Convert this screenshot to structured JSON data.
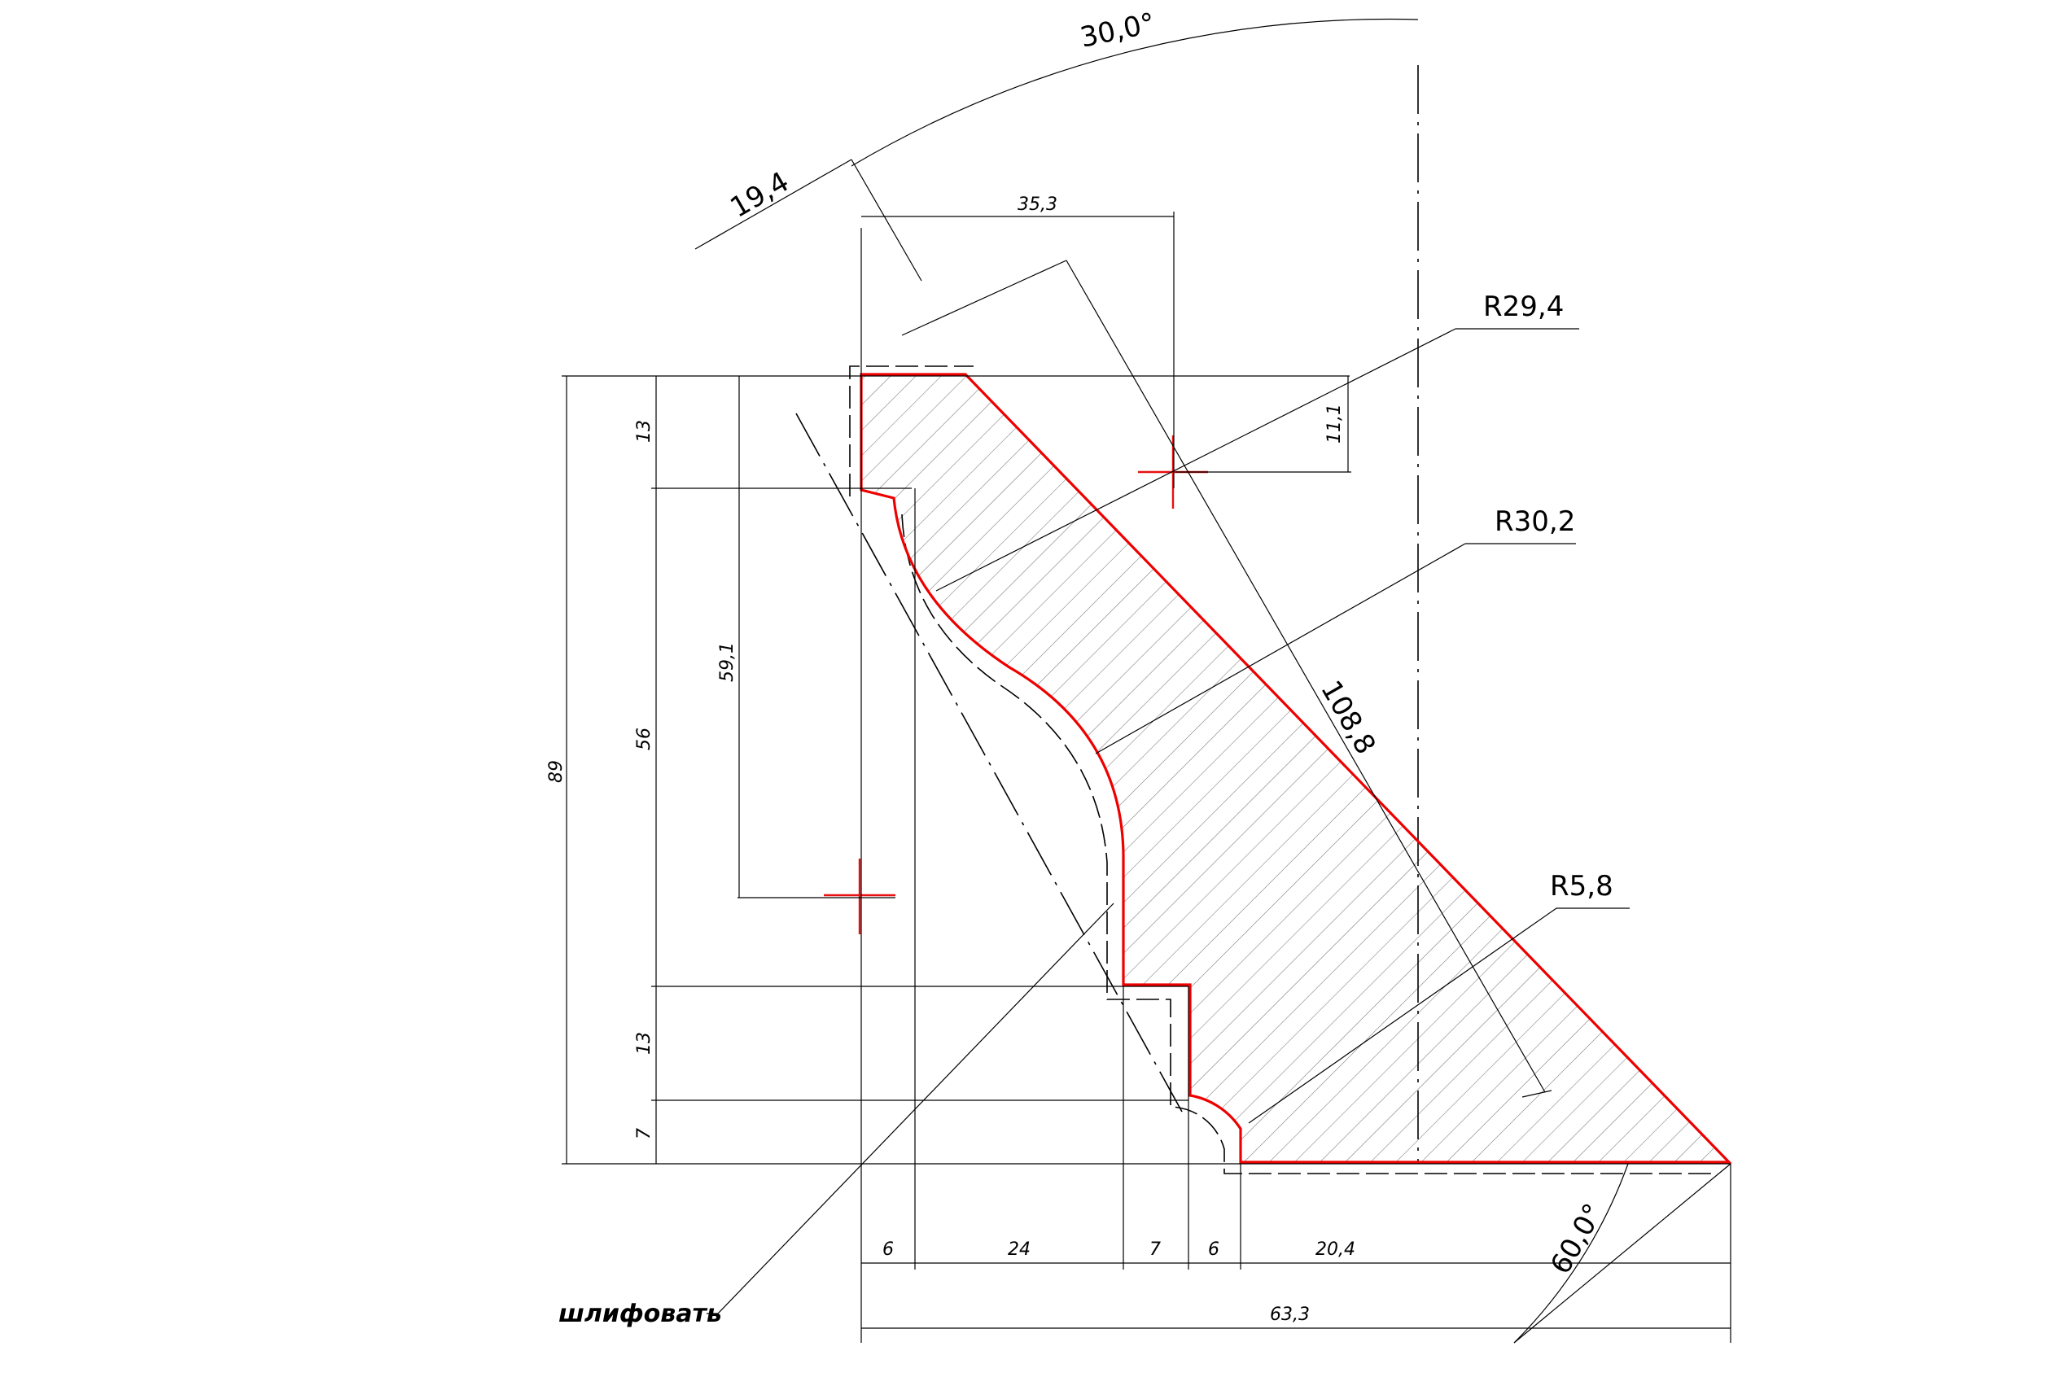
{
  "angles": {
    "top": "30,0°",
    "bottom": "60,0°"
  },
  "dimensions": {
    "slant_width": "19,4",
    "top_width": "35,3",
    "offset_small": "11,1",
    "slant_length": "108,8",
    "total_height": "89",
    "h_top": "13",
    "h_mid": "56",
    "h_lower": "13",
    "h_bottom": "7",
    "center_height": "59,1",
    "w1": "6",
    "w2": "24",
    "w3": "7",
    "w4": "6",
    "w5": "20,4",
    "total_width": "63,3"
  },
  "radii": {
    "r1": "R29,4",
    "r2": "R30,2",
    "r3": "R5,8"
  },
  "note": "шлифовать",
  "colors": {
    "profile": "#ee0000",
    "lines": "#000000",
    "hatch": "#777777"
  }
}
